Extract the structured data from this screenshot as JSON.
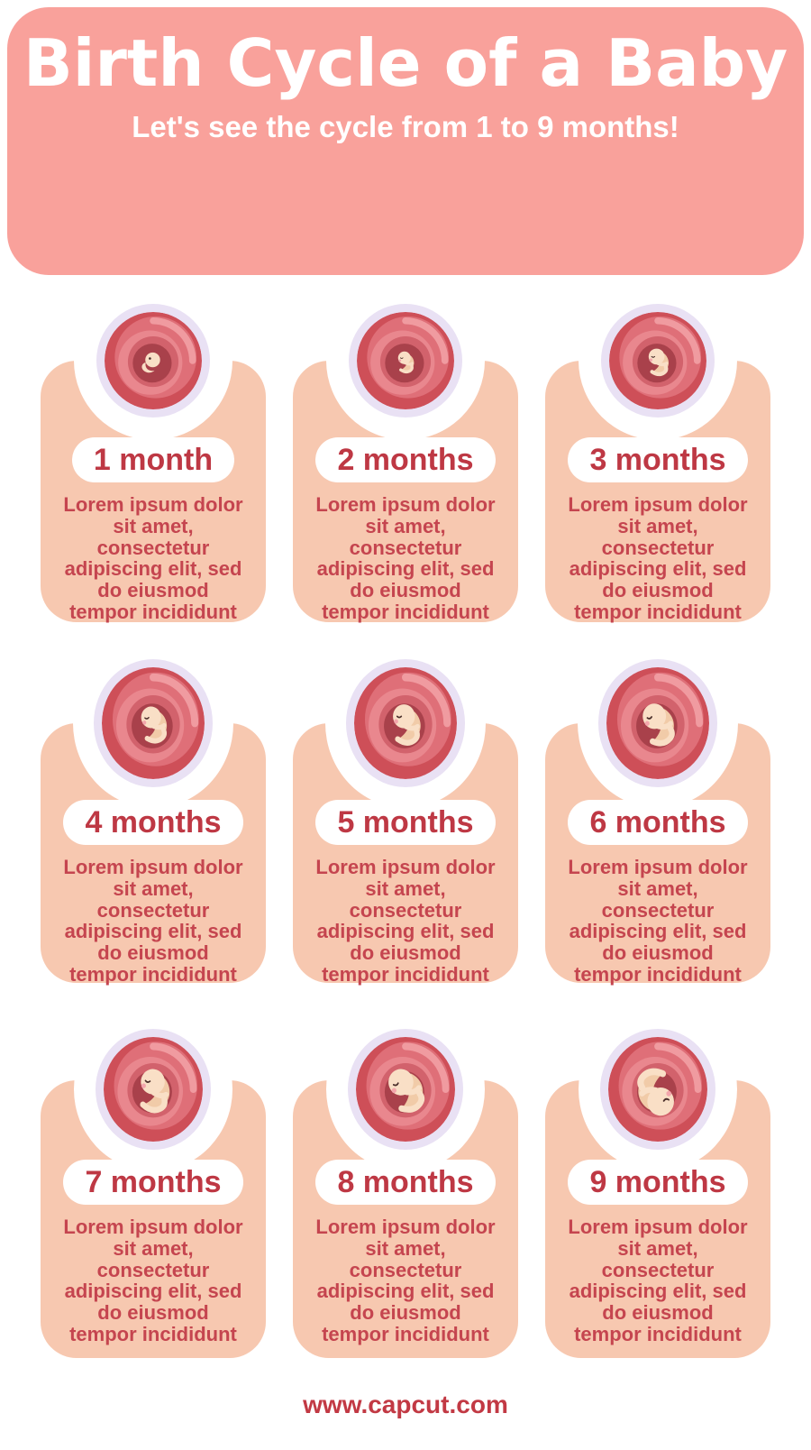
{
  "header": {
    "title": "Birth Cycle of a Baby",
    "subtitle": "Let's see the cycle from 1 to 9 months!"
  },
  "cards": [
    {
      "label": "1 month",
      "body": "Lorem ipsum dolor\nsit amet,\nconsectetur\nadipiscing elit, sed\ndo eiusmod\ntempor incididunt"
    },
    {
      "label": "2 months",
      "body": "Lorem ipsum dolor\nsit amet,\nconsectetur\nadipiscing elit, sed\ndo eiusmod\ntempor incididunt"
    },
    {
      "label": "3 months",
      "body": "Lorem ipsum dolor\nsit amet,\nconsectetur\nadipiscing elit, sed\ndo eiusmod\ntempor incididunt"
    },
    {
      "label": "4 months",
      "body": "Lorem ipsum dolor\nsit amet,\nconsectetur\nadipiscing elit, sed\ndo eiusmod\ntempor incididunt"
    },
    {
      "label": "5 months",
      "body": "Lorem ipsum dolor\nsit amet,\nconsectetur\nadipiscing elit, sed\ndo eiusmod\ntempor incididunt"
    },
    {
      "label": "6 months",
      "body": "Lorem ipsum dolor\nsit amet,\nconsectetur\nadipiscing elit, sed\ndo eiusmod\ntempor incididunt"
    },
    {
      "label": "7 months",
      "body": "Lorem ipsum dolor\nsit amet,\nconsectetur\nadipiscing elit, sed\ndo eiusmod\ntempor incididunt"
    },
    {
      "label": "8 months",
      "body": "Lorem ipsum dolor\nsit amet,\nconsectetur\nadipiscing elit, sed\ndo eiusmod\ntempor incididunt"
    },
    {
      "label": "9 months",
      "body": "Lorem ipsum dolor\nsit amet,\nconsectetur\nadipiscing elit, sed\ndo eiusmod\ntempor incididunt"
    }
  ],
  "footer": {
    "url": "www.capcut.com"
  },
  "icons": {
    "womb": "fetus-in-womb-illustration"
  },
  "colors": {
    "header_bg": "#F9A19B",
    "header_text": "#FFFFFF",
    "card_bg": "#F7C8B0",
    "pill_bg": "#FFFFFF",
    "pill_text": "#BE3844",
    "body_text": "#C5454F",
    "footer_text": "#C23944",
    "womb_ring": "#E9E1F4",
    "womb_outer": "#CE4F58",
    "womb_mid": "#DF6F78",
    "womb_highlight": "#F09BA0",
    "womb_inner_light": "#E9878E",
    "womb_inner": "#D2626C",
    "womb_dark": "#A9414B",
    "fetus_skin": "#F9DFC6",
    "fetus_shade": "#F1CBA8",
    "fetus_cheek": "#F3A6AC",
    "fetus_line": "#4A2F2B"
  }
}
